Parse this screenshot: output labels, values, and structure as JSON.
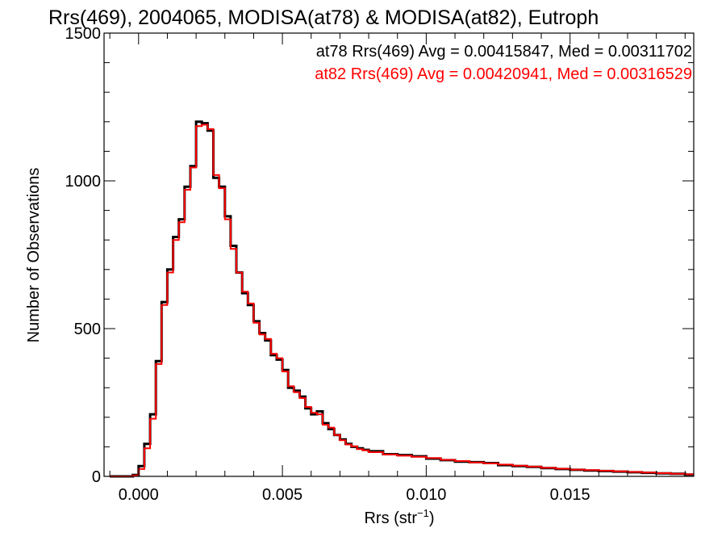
{
  "chart_data": {
    "type": "line",
    "title": "Rrs(469), 2004065, MODISA(at78) & MODISA(at82), Eutroph",
    "xlabel": {
      "base": "Rrs (str",
      "sup": "−1",
      "close": ")"
    },
    "ylabel": "Number of Observations",
    "xlim": [
      -0.0012,
      0.0193
    ],
    "ylim": [
      0,
      1500
    ],
    "xticks": [
      0.0,
      0.005,
      0.01,
      0.015
    ],
    "xtick_labels": [
      "0.000",
      "0.005",
      "0.010",
      "0.015"
    ],
    "yticks": [
      0,
      500,
      1000,
      1500
    ],
    "ytick_labels": [
      "0",
      "500",
      "1000",
      "1500"
    ],
    "legend_placement": "top-right",
    "grid": false,
    "series": [
      {
        "name": "at78",
        "color": "#000000",
        "legend": "at78 Rrs(469) Avg = 0.00415847, Med = 0.00311702",
        "x": [
          -0.001,
          -0.0005,
          -0.0002,
          0.0,
          0.0002,
          0.0004,
          0.0006,
          0.0008,
          0.001,
          0.0012,
          0.0014,
          0.0016,
          0.0018,
          0.002,
          0.0022,
          0.0024,
          0.0026,
          0.0028,
          0.003,
          0.0032,
          0.0034,
          0.0036,
          0.0038,
          0.004,
          0.0042,
          0.0044,
          0.0046,
          0.0048,
          0.005,
          0.0052,
          0.0054,
          0.0056,
          0.0058,
          0.006,
          0.0062,
          0.0064,
          0.0066,
          0.0068,
          0.007,
          0.0072,
          0.0074,
          0.0076,
          0.0078,
          0.008,
          0.0085,
          0.009,
          0.0095,
          0.01,
          0.0105,
          0.011,
          0.0115,
          0.012,
          0.0125,
          0.013,
          0.0135,
          0.014,
          0.0145,
          0.015,
          0.0155,
          0.016,
          0.0165,
          0.017,
          0.0175,
          0.018,
          0.0185,
          0.019
        ],
        "values": [
          0,
          0,
          5,
          35,
          110,
          210,
          390,
          590,
          700,
          810,
          870,
          980,
          1050,
          1200,
          1195,
          1170,
          1010,
          980,
          880,
          780,
          690,
          620,
          580,
          525,
          485,
          460,
          410,
          395,
          360,
          300,
          290,
          270,
          230,
          210,
          220,
          180,
          160,
          140,
          125,
          110,
          100,
          95,
          90,
          85,
          75,
          72,
          68,
          60,
          55,
          50,
          48,
          45,
          38,
          35,
          32,
          28,
          25,
          22,
          20,
          18,
          16,
          14,
          12,
          10,
          9,
          6
        ]
      },
      {
        "name": "at82",
        "color": "#ff0000",
        "legend": "at82 Rrs(469) Avg = 0.00420941, Med = 0.00316529",
        "x": [
          -0.001,
          -0.0005,
          -0.0002,
          0.0,
          0.0002,
          0.0004,
          0.0006,
          0.0008,
          0.001,
          0.0012,
          0.0014,
          0.0016,
          0.0018,
          0.002,
          0.0022,
          0.0024,
          0.0026,
          0.0028,
          0.003,
          0.0032,
          0.0034,
          0.0036,
          0.0038,
          0.004,
          0.0042,
          0.0044,
          0.0046,
          0.0048,
          0.005,
          0.0052,
          0.0054,
          0.0056,
          0.0058,
          0.006,
          0.0062,
          0.0064,
          0.0066,
          0.0068,
          0.007,
          0.0072,
          0.0074,
          0.0076,
          0.0078,
          0.008,
          0.0085,
          0.009,
          0.0095,
          0.01,
          0.0105,
          0.011,
          0.0115,
          0.012,
          0.0125,
          0.013,
          0.0135,
          0.014,
          0.0145,
          0.015,
          0.0155,
          0.016,
          0.0165,
          0.017,
          0.0175,
          0.018,
          0.0185,
          0.019
        ],
        "values": [
          0,
          0,
          3,
          25,
          95,
          195,
          380,
          580,
          690,
          800,
          860,
          970,
          1045,
          1185,
          1190,
          1175,
          1020,
          975,
          870,
          770,
          690,
          625,
          585,
          520,
          480,
          465,
          415,
          400,
          355,
          305,
          285,
          265,
          235,
          215,
          210,
          175,
          165,
          140,
          122,
          108,
          102,
          92,
          88,
          82,
          74,
          70,
          66,
          62,
          56,
          52,
          47,
          44,
          40,
          36,
          33,
          29,
          26,
          23,
          21,
          19,
          17,
          15,
          13,
          11,
          9,
          7
        ]
      }
    ]
  }
}
